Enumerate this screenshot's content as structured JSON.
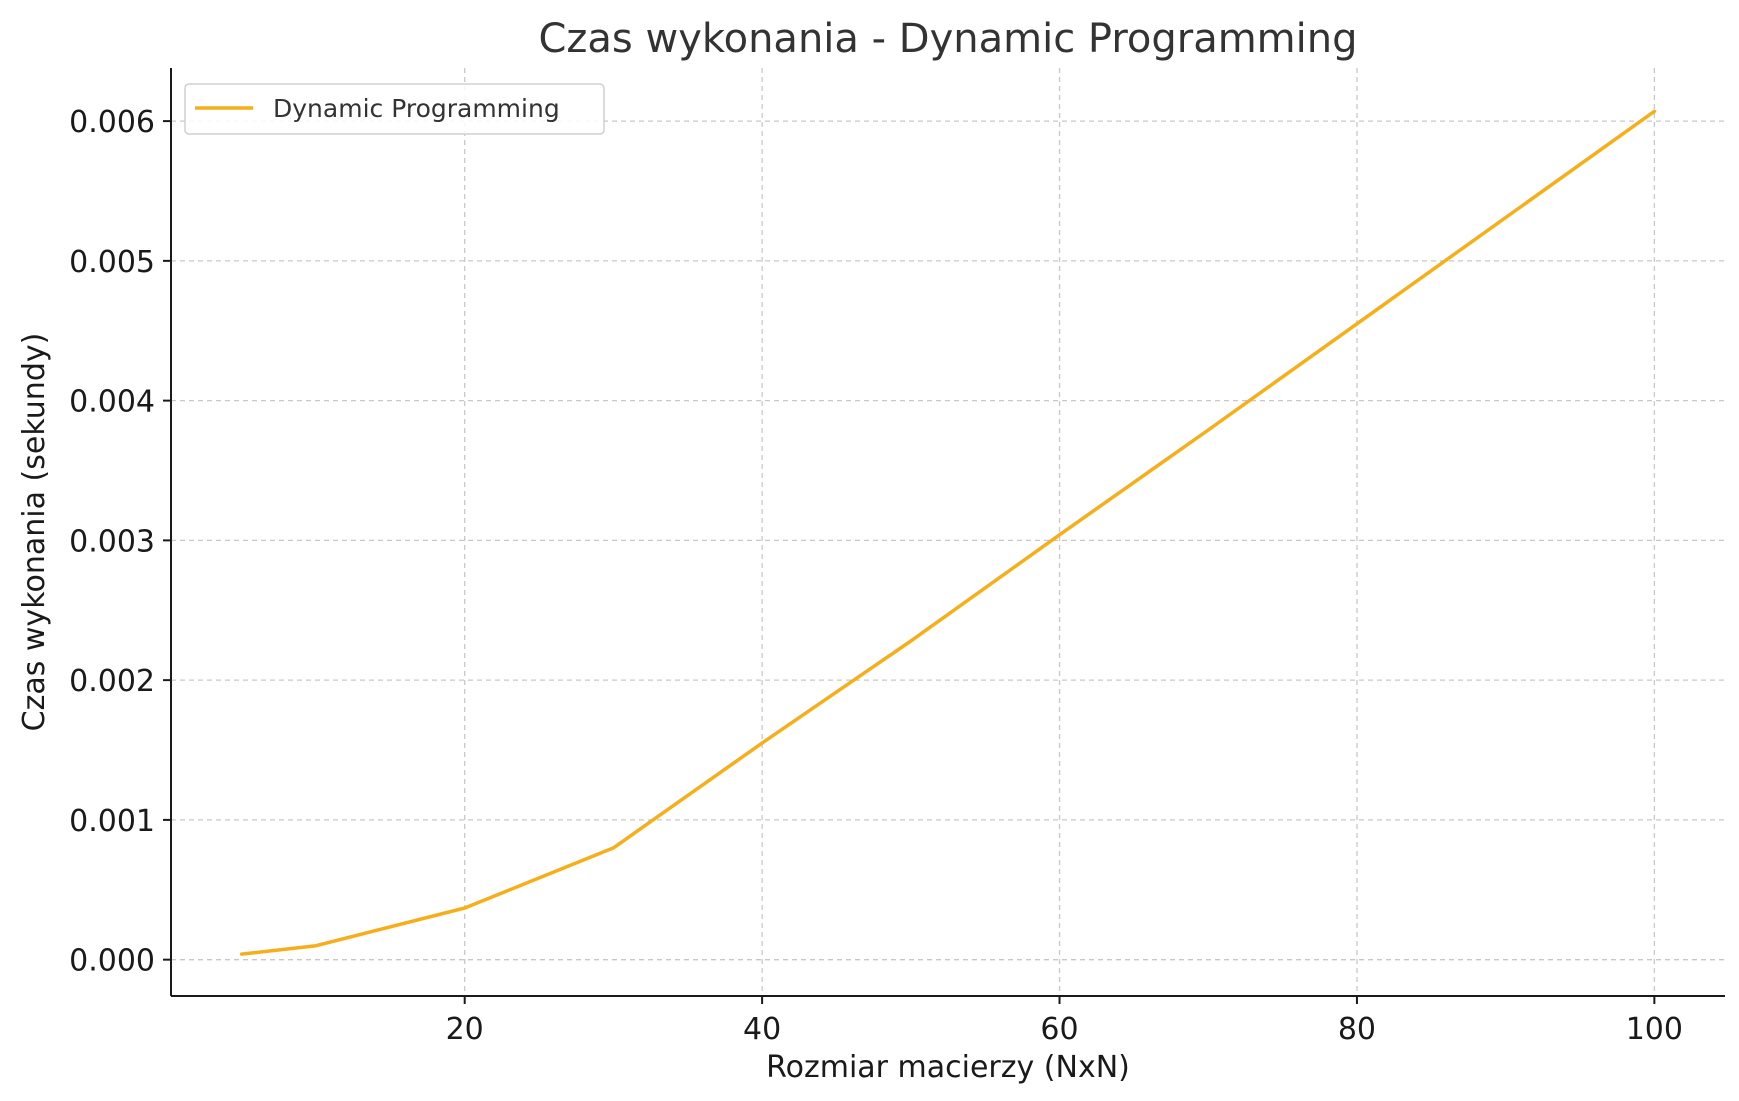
{
  "chart_data": {
    "type": "line",
    "title": "Czas wykonania - Dynamic Programming",
    "xlabel": "Rozmiar macierzy (NxN)",
    "ylabel": "Czas wykonania (sekundy)",
    "xlim": [
      0.25,
      104.75
    ],
    "ylim": [
      -0.00026,
      0.00638
    ],
    "x_ticks": [
      20,
      40,
      60,
      80,
      100
    ],
    "x_tick_labels": [
      "20",
      "40",
      "60",
      "80",
      "100"
    ],
    "y_ticks": [
      0.0,
      0.001,
      0.002,
      0.003,
      0.004,
      0.005,
      0.006
    ],
    "y_tick_labels": [
      "0.000",
      "0.001",
      "0.002",
      "0.003",
      "0.004",
      "0.005",
      "0.006"
    ],
    "grid": true,
    "legend_position": "top-left",
    "series": [
      {
        "name": "Dynamic Programming",
        "color": "#F7AE1B",
        "x": [
          5,
          10,
          20,
          30,
          40,
          50,
          60,
          70,
          80,
          90,
          100
        ],
        "y": [
          4e-05,
          0.0001,
          0.00037,
          0.0008,
          0.00155,
          0.00228,
          0.00304,
          0.00379,
          0.00455,
          0.00531,
          0.00607
        ]
      }
    ]
  }
}
